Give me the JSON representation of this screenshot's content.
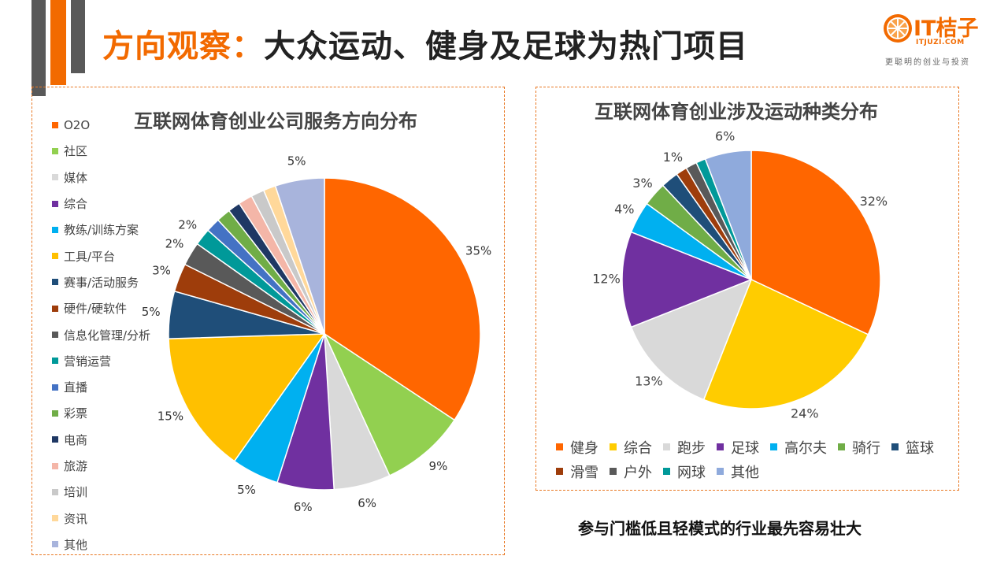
{
  "header": {
    "title_prefix": "方向观察：",
    "title_main": "大众运动、健身及足球为热门项目"
  },
  "logo": {
    "name": "IT桔子",
    "url": "ITJUZI.COM",
    "slogan": "更聪明的创业与投资"
  },
  "caption": "参与门槛低且轻模式的行业最先容易壮大",
  "chart_data": [
    {
      "type": "pie",
      "title": "互联网体育创业公司服务方向分布",
      "legend_position": "left",
      "series": [
        {
          "name": "O2O",
          "value": 35,
          "label": "35%",
          "color": "#ff6600"
        },
        {
          "name": "社区",
          "value": 9,
          "label": "9%",
          "color": "#92d050"
        },
        {
          "name": "媒体",
          "value": 6,
          "label": "6%",
          "color": "#d9d9d9"
        },
        {
          "name": "综合",
          "value": 6,
          "label": "6%",
          "color": "#7030a0"
        },
        {
          "name": "教练/训练方案",
          "value": 5,
          "label": "5%",
          "color": "#00b0f0"
        },
        {
          "name": "工具/平台",
          "value": 15,
          "label": "15%",
          "color": "#ffc000"
        },
        {
          "name": "赛事/活动服务",
          "value": 5,
          "label": "5%",
          "color": "#1f4e79"
        },
        {
          "name": "硬件/硬软件",
          "value": 3,
          "label": "3%",
          "color": "#9e3d0b"
        },
        {
          "name": "信息化管理/分析",
          "value": 2.5,
          "label": "2%",
          "color": "#595959"
        },
        {
          "name": "营销运营",
          "value": 1.8,
          "label": "2%",
          "color": "#009999"
        },
        {
          "name": "直播",
          "value": 1.5,
          "label": "",
          "color": "#4472c4"
        },
        {
          "name": "彩票",
          "value": 1.5,
          "label": "",
          "color": "#70ad47"
        },
        {
          "name": "电商",
          "value": 1.3,
          "label": "",
          "color": "#1f3864"
        },
        {
          "name": "旅游",
          "value": 1.5,
          "label": "",
          "color": "#f4b6a8"
        },
        {
          "name": "培训",
          "value": 1.4,
          "label": "",
          "color": "#c9c9c9"
        },
        {
          "name": "资讯",
          "value": 1.3,
          "label": "",
          "color": "#ffd89a"
        },
        {
          "name": "其他",
          "value": 5.2,
          "label": "5%",
          "color": "#a8b4dc"
        }
      ]
    },
    {
      "type": "pie",
      "title": "互联网体育创业涉及运动种类分布",
      "legend_position": "bottom",
      "series": [
        {
          "name": "健身",
          "value": 32,
          "label": "32%",
          "color": "#ff6600"
        },
        {
          "name": "综合",
          "value": 24,
          "label": "24%",
          "color": "#ffcc00"
        },
        {
          "name": "跑步",
          "value": 13,
          "label": "13%",
          "color": "#d9d9d9"
        },
        {
          "name": "足球",
          "value": 12,
          "label": "12%",
          "color": "#7030a0"
        },
        {
          "name": "高尔夫",
          "value": 4,
          "label": "4%",
          "color": "#00b0f0"
        },
        {
          "name": "骑行",
          "value": 3,
          "label": "3%",
          "color": "#70ad47"
        },
        {
          "name": "篮球",
          "value": 2.2,
          "label": "",
          "color": "#1f4e79"
        },
        {
          "name": "滑雪",
          "value": 1.4,
          "label": "1%",
          "color": "#9e3d0b"
        },
        {
          "name": "户外",
          "value": 1.4,
          "label": "",
          "color": "#595959"
        },
        {
          "name": "网球",
          "value": 1.2,
          "label": "",
          "color": "#009999"
        },
        {
          "name": "其他",
          "value": 5.8,
          "label": "6%",
          "color": "#8faadc"
        }
      ]
    }
  ]
}
